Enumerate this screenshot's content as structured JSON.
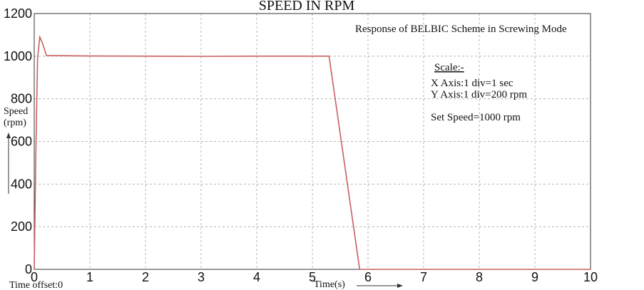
{
  "chart_data": {
    "type": "line",
    "title": "SPEED IN RPM",
    "subtitle": "Response of BELBIC Scheme in Screwing Mode",
    "ylabel": "Speed (rpm)",
    "ylabel_lines": [
      "Speed",
      "(rpm)"
    ],
    "xlabel": "Time(s)",
    "xlim": [
      0,
      10
    ],
    "ylim": [
      0,
      1200
    ],
    "x_ticks": [
      "0",
      "1",
      "2",
      "3",
      "4",
      "5",
      "6",
      "7",
      "8",
      "9",
      "10"
    ],
    "y_ticks": [
      "0",
      "200",
      "400",
      "600",
      "800",
      "1000",
      "1200"
    ],
    "grid": true,
    "scale_notes": {
      "heading": "Scale:-",
      "x_axis": "X Axis:1 div=1 sec",
      "y_axis": "Y Axis:1 div=200 rpm",
      "set_speed": "Set Speed=1000 rpm"
    },
    "time_offset": "Time offset:0",
    "series": [
      {
        "color": "#c9605e",
        "x": [
          0,
          0.03,
          0.06,
          0.1,
          0.15,
          0.22,
          1,
          2,
          3,
          4,
          5,
          5.3,
          5.85,
          6,
          7,
          8,
          9,
          10
        ],
        "y": [
          0,
          560,
          990,
          1090,
          1060,
          1003,
          1001,
          1000,
          999,
          1000,
          1000,
          1000,
          0,
          0,
          0,
          0,
          0,
          0
        ]
      }
    ]
  }
}
